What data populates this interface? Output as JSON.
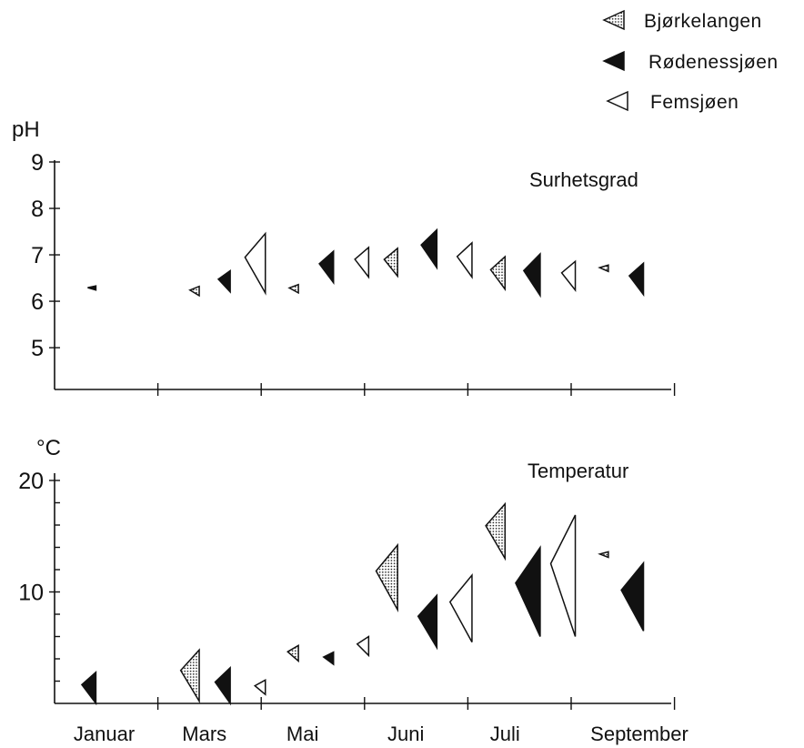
{
  "colors": {
    "Bjørkelangen": "dotted-gray",
    "Rødenessjøen": "#111111",
    "Femsjøen": "#ffffff"
  },
  "legend": {
    "placement": "top-right",
    "items": [
      {
        "name": "Bjørkelangen",
        "style": "dotted"
      },
      {
        "name": "Rødenessjøen",
        "style": "black"
      },
      {
        "name": "Femsjøen",
        "style": "white"
      }
    ]
  },
  "x_axis": {
    "labels": [
      "Januar",
      "Mars",
      "Mai",
      "Juni",
      "Juli",
      "September"
    ]
  },
  "chart_data": [
    {
      "type": "scatter",
      "title": "Surhetsgrad",
      "ylabel": "pH",
      "ylim": [
        4.1,
        9.0
      ],
      "yticks": [
        5,
        6,
        7,
        8,
        9
      ],
      "mark": "vertical-range wedge (tip points left)",
      "points": [
        {
          "x": 0.4,
          "series": "Rødenessjøen",
          "low": 6.24,
          "high": 6.33
        },
        {
          "x": 1.4,
          "series": "Bjørkelangen",
          "low": 6.12,
          "high": 6.32
        },
        {
          "x": 1.7,
          "series": "Rødenessjøen",
          "low": 6.2,
          "high": 6.66
        },
        {
          "x": 2.04,
          "series": "Femsjøen",
          "low": 6.18,
          "high": 7.46
        },
        {
          "x": 2.36,
          "series": "Bjørkelangen",
          "low": 6.18,
          "high": 6.36
        },
        {
          "x": 2.7,
          "series": "Rødenessjøen",
          "low": 6.4,
          "high": 7.08
        },
        {
          "x": 3.04,
          "series": "Femsjøen",
          "low": 6.52,
          "high": 7.16
        },
        {
          "x": 3.32,
          "series": "Bjørkelangen",
          "low": 6.54,
          "high": 7.14
        },
        {
          "x": 3.7,
          "series": "Rødenessjøen",
          "low": 6.72,
          "high": 7.54
        },
        {
          "x": 4.04,
          "series": "Femsjøen",
          "low": 6.52,
          "high": 7.26
        },
        {
          "x": 4.36,
          "series": "Bjørkelangen",
          "low": 6.26,
          "high": 6.96
        },
        {
          "x": 4.7,
          "series": "Rødenessjøen",
          "low": 6.12,
          "high": 7.02
        },
        {
          "x": 5.04,
          "series": "Femsjøen",
          "low": 6.24,
          "high": 6.86
        },
        {
          "x": 5.36,
          "series": "Bjørkelangen",
          "low": 6.64,
          "high": 6.78
        },
        {
          "x": 5.7,
          "series": "Rødenessjøen",
          "low": 6.14,
          "high": 6.82
        }
      ]
    },
    {
      "type": "scatter",
      "title": "Temperatur",
      "ylabel": "°C",
      "ylim": [
        0,
        20
      ],
      "yticks": [
        10,
        20
      ],
      "mark": "vertical-range wedge (tip points left)",
      "points": [
        {
          "x": 0.4,
          "series": "Rødenessjøen",
          "low": 0.0,
          "high": 2.8
        },
        {
          "x": 1.4,
          "series": "Bjørkelangen",
          "low": 0.2,
          "high": 4.8
        },
        {
          "x": 1.7,
          "series": "Rødenessjøen",
          "low": 0.0,
          "high": 3.2
        },
        {
          "x": 2.04,
          "series": "Femsjøen",
          "low": 0.8,
          "high": 2.1
        },
        {
          "x": 2.36,
          "series": "Bjørkelangen",
          "low": 3.8,
          "high": 5.2
        },
        {
          "x": 2.7,
          "series": "Rødenessjøen",
          "low": 3.5,
          "high": 4.6
        },
        {
          "x": 3.04,
          "series": "Femsjøen",
          "low": 4.3,
          "high": 6.0
        },
        {
          "x": 3.32,
          "series": "Bjørkelangen",
          "low": 8.4,
          "high": 14.2
        },
        {
          "x": 3.7,
          "series": "Rødenessjøen",
          "low": 5.0,
          "high": 9.7
        },
        {
          "x": 4.04,
          "series": "Femsjøen",
          "low": 5.5,
          "high": 11.5
        },
        {
          "x": 4.36,
          "series": "Bjørkelangen",
          "low": 13.0,
          "high": 17.9
        },
        {
          "x": 4.7,
          "series": "Rødenessjøen",
          "low": 6.0,
          "high": 14.0
        },
        {
          "x": 5.04,
          "series": "Femsjøen",
          "low": 6.0,
          "high": 16.9
        },
        {
          "x": 5.36,
          "series": "Bjørkelangen",
          "low": 13.1,
          "high": 13.6
        },
        {
          "x": 5.7,
          "series": "Rødenessjøen",
          "low": 6.5,
          "high": 12.6
        }
      ]
    }
  ]
}
